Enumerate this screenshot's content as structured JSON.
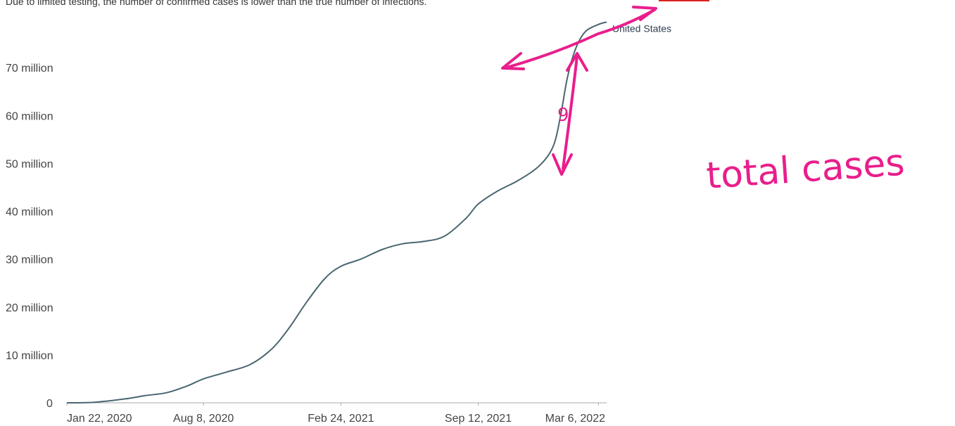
{
  "subtitle": "Due to limited testing, the number of confirmed cases is lower than the true number of infections.",
  "chart_data": {
    "type": "line",
    "x_ticks": [
      "Jan 22, 2020",
      "Aug 8, 2020",
      "Feb 24, 2021",
      "Sep 12, 2021",
      "Mar 6, 2022"
    ],
    "y_ticks": [
      "0",
      "10 million",
      "20 million",
      "30 million",
      "40 million",
      "50 million",
      "60 million",
      "70 million"
    ],
    "ylim": [
      0,
      80000000
    ],
    "series": [
      {
        "name": "United States",
        "color": "#4a6670",
        "points": [
          [
            "2020-01-22",
            0
          ],
          [
            "2020-03-01",
            100000
          ],
          [
            "2020-04-15",
            800000
          ],
          [
            "2020-05-15",
            1500000
          ],
          [
            "2020-06-15",
            2100000
          ],
          [
            "2020-07-15",
            3500000
          ],
          [
            "2020-08-08",
            5000000
          ],
          [
            "2020-09-10",
            6400000
          ],
          [
            "2020-10-15",
            8000000
          ],
          [
            "2020-11-15",
            11200000
          ],
          [
            "2020-12-10",
            15500000
          ],
          [
            "2021-01-05",
            21000000
          ],
          [
            "2021-02-01",
            26000000
          ],
          [
            "2021-02-24",
            28500000
          ],
          [
            "2021-03-25",
            30000000
          ],
          [
            "2021-04-25",
            32000000
          ],
          [
            "2021-05-25",
            33200000
          ],
          [
            "2021-06-25",
            33700000
          ],
          [
            "2021-07-25",
            34800000
          ],
          [
            "2021-08-25",
            38500000
          ],
          [
            "2021-09-12",
            41500000
          ],
          [
            "2021-10-10",
            44200000
          ],
          [
            "2021-11-10",
            46500000
          ],
          [
            "2021-12-10",
            49500000
          ],
          [
            "2021-12-30",
            53500000
          ],
          [
            "2022-01-10",
            60000000
          ],
          [
            "2022-01-20",
            68000000
          ],
          [
            "2022-02-01",
            74000000
          ],
          [
            "2022-02-15",
            77500000
          ],
          [
            "2022-03-06",
            79000000
          ],
          [
            "2022-03-18",
            79500000
          ]
        ]
      }
    ],
    "annotations": {
      "handwritten_label": "total cases",
      "digit": "9",
      "color": "#e91e8c"
    }
  }
}
